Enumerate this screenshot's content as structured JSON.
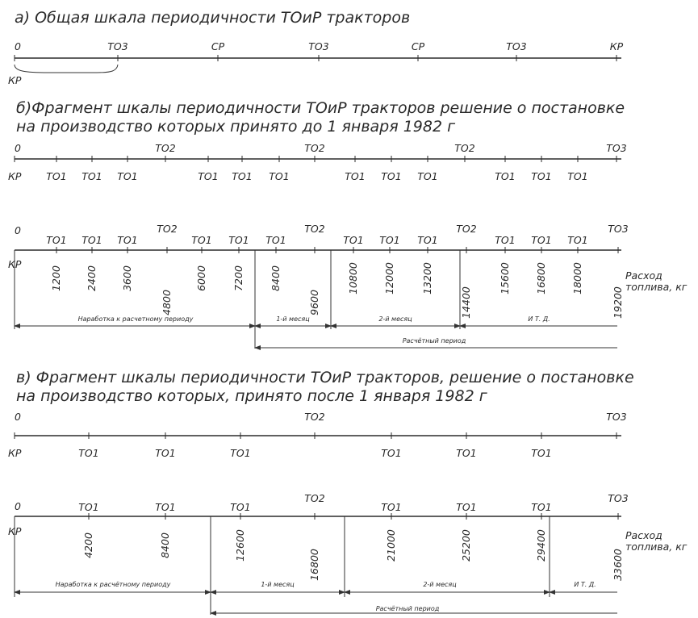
{
  "a": {
    "title": "а) Общая  шкала периодичности ТОиР тракторов",
    "top_labels": [
      "0",
      "ТО3",
      "СР",
      "ТО3",
      "СР",
      "ТО3",
      "КР"
    ],
    "bottom_labels": [
      "КР"
    ]
  },
  "b": {
    "title_line1": "б)Фрагмент шкалы периодичности ТОиР тракторов решение о постановке",
    "title_line2": "на производство  которых  принято до 1 января 1982 г",
    "scale1_top": [
      "0",
      "ТО2",
      "ТО2",
      "ТО2",
      "ТО3"
    ],
    "scale1_bottom": [
      "КР",
      "ТО1",
      "ТО1",
      "ТО1",
      "ТО1",
      "ТО1",
      "ТО1",
      "ТО1",
      "ТО1",
      "ТО1",
      "ТО1",
      "ТО1",
      "ТО1"
    ],
    "scale2_top": [
      "0",
      "ТО1",
      "ТО1",
      "ТО1",
      "ТО2",
      "ТО1",
      "ТО1",
      "ТО1",
      "ТО2",
      "ТО1",
      "ТО1",
      "ТО1",
      "ТО2",
      "ТО1",
      "ТО1",
      "ТО1",
      "ТО3"
    ],
    "scale2_left": "КР",
    "fuel_values": [
      "1200",
      "2400",
      "3600",
      "4800",
      "6000",
      "7200",
      "8400",
      "9600",
      "10800",
      "12000",
      "13200",
      "14400",
      "15600",
      "16800",
      "18000",
      "19200"
    ],
    "fuel_label_line1": "Расход",
    "fuel_label_line2": "топлива, кг",
    "dim_labels": [
      "Наработка к расчетному периоду",
      "1-й месяц",
      "2-й месяц",
      "И Т. Д."
    ],
    "period_label": "Расчётный период"
  },
  "c": {
    "title_line1": "в) Фрагмент шкалы периодичности ТОиР тракторов,  решение о постановке",
    "title_line2": "на производство  которых,  принято после  1 января 1982 г",
    "scale1_top": [
      "0",
      "ТО2",
      "ТО3"
    ],
    "scale1_bottom": [
      "КР",
      "ТО1",
      "ТО1",
      "ТО1",
      "ТО1",
      "ТО1",
      "ТО1"
    ],
    "scale2_top": [
      "0",
      "ТО1",
      "ТО1",
      "ТО1",
      "ТО2",
      "ТО1",
      "ТО1",
      "ТО1",
      "ТО3"
    ],
    "scale2_left": "КР",
    "fuel_values": [
      "4200",
      "8400",
      "12600",
      "16800",
      "21000",
      "25200",
      "29400",
      "33600"
    ],
    "fuel_label_line1": "Расход",
    "fuel_label_line2": "топлива, кг",
    "dim_labels": [
      "Наработка к расчётному периоду",
      "1-й месяц",
      "2-й месяц",
      "И Т. Д."
    ],
    "period_label": "Расчётный период"
  }
}
